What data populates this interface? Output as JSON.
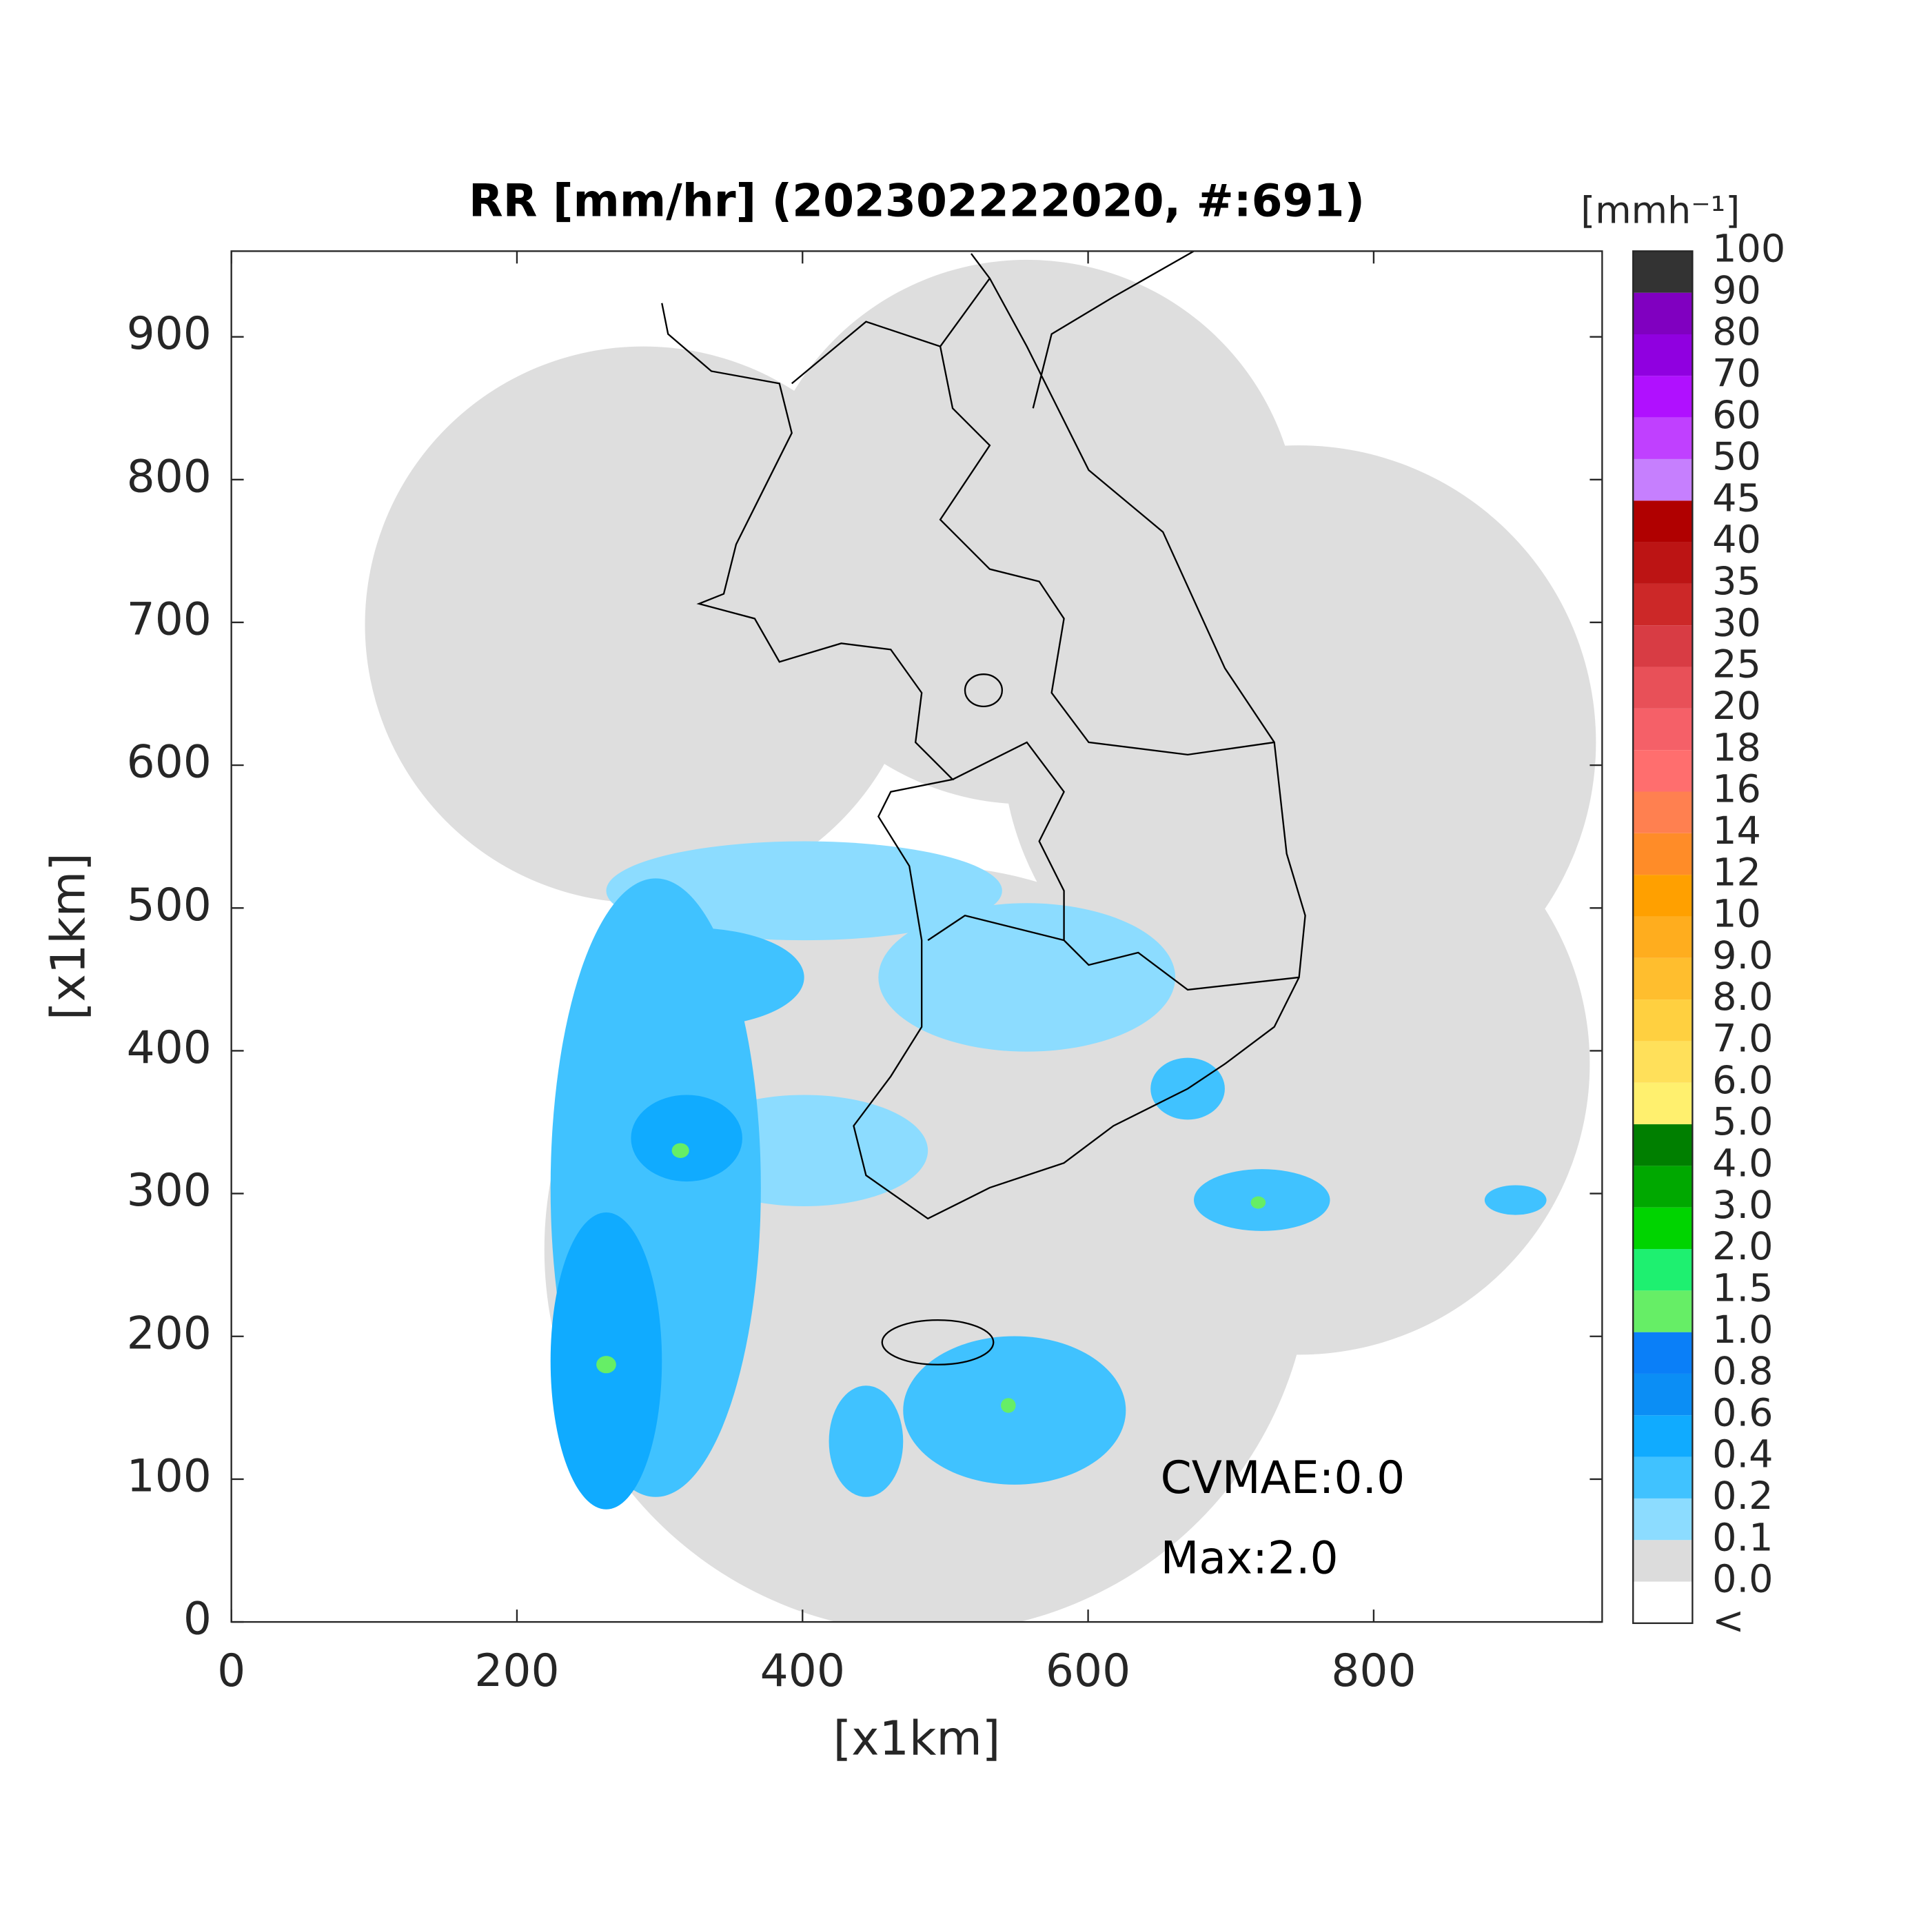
{
  "chart_data": {
    "type": "map",
    "title": "RR [mm/hr] (202302222020, #:691)",
    "xlabel": "[x1km]",
    "ylabel": "[x1km]",
    "xlim": [
      0,
      960
    ],
    "ylim": [
      0,
      960
    ],
    "xticks": [
      0,
      200,
      400,
      600,
      800
    ],
    "yticks": [
      0,
      100,
      200,
      300,
      400,
      500,
      600,
      700,
      800,
      900
    ],
    "annotations": [
      "CVMAE:0.0",
      "Max:2.0"
    ],
    "colorbar": {
      "label": "[mmh⁻¹]",
      "levels": [
        "<",
        "0.0",
        "0.1",
        "0.2",
        "0.4",
        "0.6",
        "0.8",
        "1.0",
        "1.5",
        "2.0",
        "3.0",
        "4.0",
        "5.0",
        "6.0",
        "7.0",
        "8.0",
        "9.0",
        "10",
        "12",
        "14",
        "16",
        "18",
        "20",
        "25",
        "30",
        "35",
        "40",
        "45",
        "50",
        "60",
        "70",
        "80",
        "90",
        "100"
      ],
      "colors": [
        "#ffffff",
        "#dcdcdc",
        "#8cdcff",
        "#40c2ff",
        "#10abff",
        "#0b8ef5",
        "#0a7ff8",
        "#66ee66",
        "#1ef070",
        "#00d400",
        "#00a800",
        "#007f00",
        "#fff06e",
        "#ffe05a",
        "#ffd040",
        "#ffbe2e",
        "#ffad1e",
        "#ffa000",
        "#ff8c28",
        "#ff8050",
        "#ff6e6e",
        "#f56068",
        "#e85058",
        "#d83c44",
        "#cc2828",
        "#bc1414",
        "#b00000",
        "#c67ffe",
        "#c040ff",
        "#b010ff",
        "#9000e0",
        "#8000c0",
        "#333333"
      ]
    }
  }
}
